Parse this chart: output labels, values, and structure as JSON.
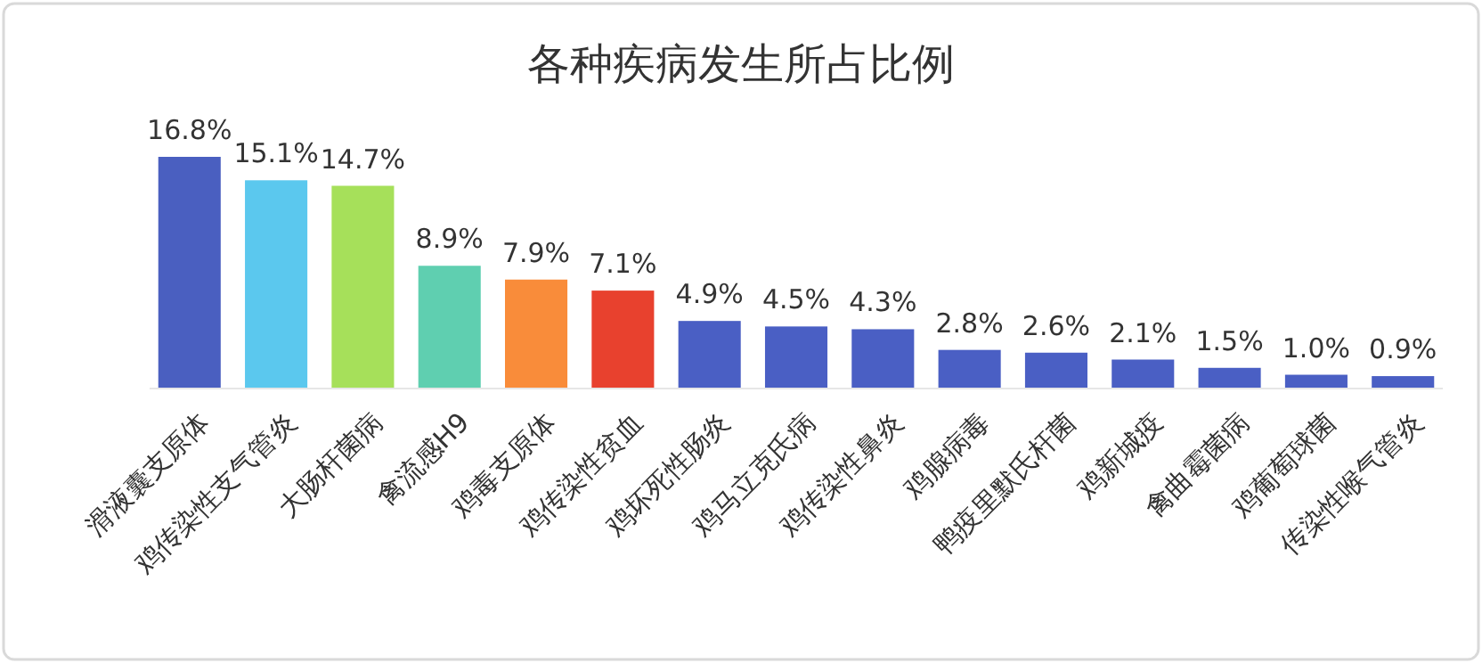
{
  "chart_data": {
    "type": "bar",
    "title": "各种疾病发生所占比例",
    "categories": [
      "滑液囊支原体",
      "鸡传染性支气管炎",
      "大肠杆菌病",
      "禽流感H9",
      "鸡毒支原体",
      "鸡传染性贫血",
      "鸡坏死性肠炎",
      "鸡马立克氏病",
      "鸡传染性鼻炎",
      "鸡腺病毒",
      "鸭疫里默氏杆菌",
      "鸡新城疫",
      "禽曲霉菌病",
      "鸡葡萄球菌",
      "传染性喉气管炎"
    ],
    "values": [
      16.8,
      15.1,
      14.7,
      8.9,
      7.9,
      7.1,
      4.9,
      4.5,
      4.3,
      2.8,
      2.6,
      2.1,
      1.5,
      1.0,
      0.9
    ],
    "value_labels": [
      "16.8%",
      "15.1%",
      "14.7%",
      "8.9%",
      "7.9%",
      "7.1%",
      "4.9%",
      "4.5%",
      "4.3%",
      "2.8%",
      "2.6%",
      "2.1%",
      "1.5%",
      "1.0%",
      "0.9%"
    ],
    "colors": [
      "#4a5fc0",
      "#5bc8ee",
      "#a6e05a",
      "#5fcfb0",
      "#f98c3a",
      "#e8412e",
      "#4a5fc4",
      "#4a5fc4",
      "#4a5fc4",
      "#4a5fc4",
      "#4a5fc4",
      "#4a5fc4",
      "#4a5fc4",
      "#4a5fc4",
      "#4a5fc4"
    ]
  }
}
